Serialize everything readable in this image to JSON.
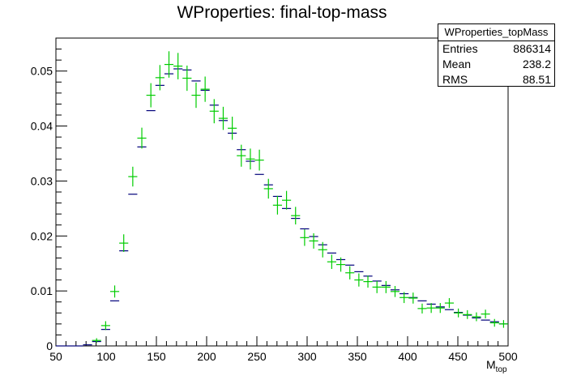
{
  "title": "WProperties: final-top-mass",
  "stats": {
    "name": "WProperties_topMass",
    "rows": [
      {
        "key": "Entries",
        "value": "886314"
      },
      {
        "key": "Mean",
        "value": "238.2"
      },
      {
        "key": "RMS",
        "value": "88.51"
      }
    ]
  },
  "colors": {
    "blue_series": "#00007a",
    "green_series": "#00cc00",
    "axis": "#000000"
  },
  "chart_data": {
    "type": "scatter",
    "title": "WProperties: final-top-mass",
    "xlabel_main": "M",
    "xlabel_sub": "top",
    "ylabel": "",
    "xlim": [
      50,
      500
    ],
    "ylim": [
      0,
      0.056
    ],
    "x_ticks": [
      "50",
      "100",
      "150",
      "200",
      "250",
      "300",
      "350",
      "400",
      "450",
      "500"
    ],
    "y_ticks": [
      "0",
      "0.01",
      "0.02",
      "0.03",
      "0.04",
      "0.05"
    ],
    "bin_width": 9,
    "grid": false,
    "legend": "none",
    "series": [
      {
        "color": "#00007a",
        "x": [
          54.5,
          63.5,
          72.5,
          81.5,
          90.5,
          99.5,
          108.5,
          117.5,
          126.5,
          135.5,
          144.5,
          153.5,
          162.5,
          171.5,
          180.5,
          189.5,
          198.5,
          207.5,
          216.5,
          225.5,
          234.5,
          243.5,
          252.5,
          261.5,
          270.5,
          279.5,
          288.5,
          297.5,
          306.5,
          315.5,
          324.5,
          333.5,
          342.5,
          351.5,
          360.5,
          369.5,
          378.5,
          387.5,
          396.5,
          405.5,
          414.5,
          423.5,
          432.5,
          441.5,
          450.5,
          459.5,
          468.5,
          477.5,
          486.5,
          495.5
        ],
        "y": [
          0,
          0,
          0,
          0.0002,
          0.0008,
          0.003,
          0.0082,
          0.0173,
          0.0276,
          0.0362,
          0.0428,
          0.0474,
          0.0495,
          0.0504,
          0.0502,
          0.0482,
          0.0465,
          0.0438,
          0.041,
          0.0387,
          0.0357,
          0.0336,
          0.0312,
          0.0293,
          0.0272,
          0.025,
          0.0232,
          0.0213,
          0.0199,
          0.0184,
          0.0169,
          0.0157,
          0.0147,
          0.0135,
          0.0127,
          0.0118,
          0.011,
          0.0102,
          0.0095,
          0.0088,
          0.0082,
          0.0076,
          0.0071,
          0.0066,
          0.0061,
          0.0056,
          0.0051,
          0.0047,
          0.0044,
          0.004
        ]
      },
      {
        "color": "#00cc00",
        "x": [
          90.5,
          99.5,
          108.5,
          117.5,
          126.5,
          135.5,
          144.5,
          153.5,
          162.5,
          171.5,
          180.5,
          189.5,
          198.5,
          207.5,
          216.5,
          225.5,
          234.5,
          243.5,
          252.5,
          261.5,
          270.5,
          279.5,
          288.5,
          297.5,
          306.5,
          315.5,
          324.5,
          333.5,
          342.5,
          351.5,
          360.5,
          369.5,
          378.5,
          387.5,
          396.5,
          405.5,
          414.5,
          423.5,
          432.5,
          441.5,
          450.5,
          459.5,
          468.5,
          477.5,
          486.5,
          495.5
        ],
        "y": [
          0.001,
          0.0037,
          0.0099,
          0.0187,
          0.0308,
          0.0378,
          0.0456,
          0.0488,
          0.0512,
          0.0509,
          0.0487,
          0.0456,
          0.0467,
          0.0427,
          0.0414,
          0.0396,
          0.0346,
          0.034,
          0.0338,
          0.0286,
          0.0256,
          0.0265,
          0.0237,
          0.0197,
          0.0191,
          0.0175,
          0.0153,
          0.0148,
          0.0133,
          0.012,
          0.0117,
          0.0107,
          0.0107,
          0.0099,
          0.0088,
          0.0087,
          0.0068,
          0.0069,
          0.0069,
          0.0078,
          0.006,
          0.0057,
          0.0053,
          0.0058,
          0.0042,
          0.004
        ],
        "err": [
          0.0004,
          0.0008,
          0.0011,
          0.0016,
          0.0018,
          0.0019,
          0.0022,
          0.0023,
          0.0024,
          0.0024,
          0.0023,
          0.0023,
          0.0023,
          0.0022,
          0.0021,
          0.0021,
          0.002,
          0.0019,
          0.0019,
          0.0018,
          0.0017,
          0.0017,
          0.0016,
          0.0015,
          0.0014,
          0.0014,
          0.0013,
          0.0013,
          0.0012,
          0.0012,
          0.0011,
          0.0011,
          0.0011,
          0.001,
          0.001,
          0.001,
          0.0009,
          0.0009,
          0.0009,
          0.0009,
          0.0008,
          0.0008,
          0.0008,
          0.0008,
          0.0007,
          0.0007
        ]
      }
    ]
  }
}
